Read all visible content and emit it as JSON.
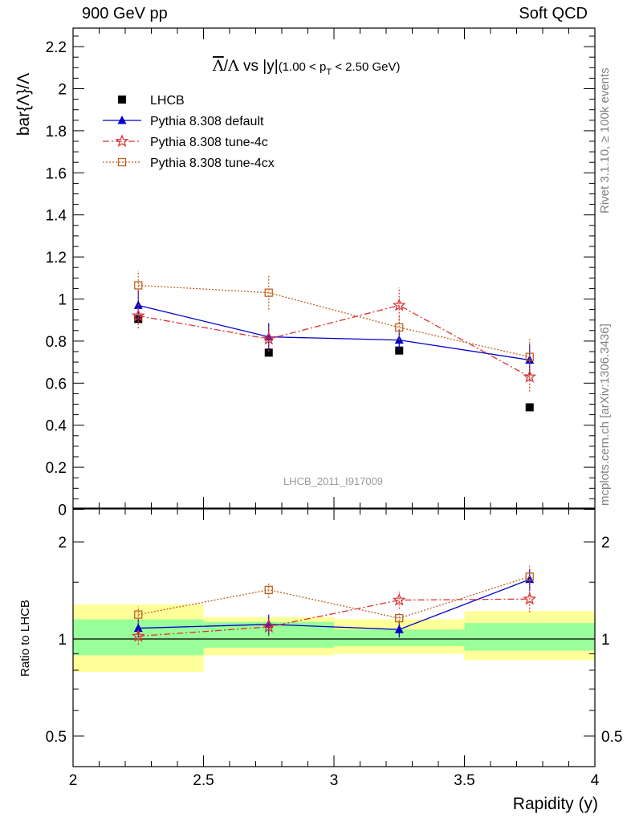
{
  "header": {
    "energy": "900 GeV pp",
    "category": "Soft QCD",
    "rivet": "Rivet 3.1.10, ≥ 100k events",
    "mcplots": "mcplots.cern.ch [arXiv:1306.3436]"
  },
  "chart_data": {
    "type": "scatter",
    "title": "Λ̄/Λ vs |y|(1.00 < p_T < 2.50 GeV)",
    "analysis_label": "LHCB_2011_I917009",
    "xlabel": "Rapidity (y)",
    "ylabel": "bar{Λ}/Λ",
    "ratio_ylabel": "Ratio to LHCB",
    "xlim": [
      2,
      4
    ],
    "ylim": [
      0,
      2.3
    ],
    "ratio_ylim": [
      0.4,
      2.3
    ],
    "x_ticks": [
      "2",
      "2.5",
      "3",
      "3.5",
      "4"
    ],
    "y_ticks": [
      "0",
      "0.2",
      "0.4",
      "0.6",
      "0.8",
      "1",
      "1.2",
      "1.4",
      "1.6",
      "1.8",
      "2",
      "2.2"
    ],
    "ratio_y_ticks": [
      "0.5",
      "1",
      "2"
    ],
    "legend_position": "top-left",
    "bins": [
      [
        2.0,
        2.5
      ],
      [
        2.5,
        3.0
      ],
      [
        3.0,
        3.5
      ],
      [
        3.5,
        4.0
      ]
    ],
    "x": [
      2.25,
      2.75,
      3.25,
      3.75
    ],
    "data": {
      "name": "LHCB",
      "values": [
        0.905,
        0.745,
        0.755,
        0.485
      ],
      "band_inner": [
        [
          0.89,
          1.15
        ],
        [
          0.94,
          1.13
        ],
        [
          0.95,
          1.07
        ],
        [
          0.92,
          1.12
        ]
      ],
      "band_outer": [
        [
          0.79,
          1.28
        ],
        [
          0.89,
          1.17
        ],
        [
          0.9,
          1.15
        ],
        [
          0.86,
          1.22
        ]
      ]
    },
    "series": [
      {
        "name": "Pythia 8.308 default",
        "color": "#0000cc",
        "marker": "triangle",
        "values": [
          0.97,
          0.82,
          0.805,
          0.71
        ],
        "errors": [
          0.07,
          0.065,
          0.05,
          0.075
        ],
        "ratio": [
          1.08,
          1.11,
          1.07,
          1.53
        ],
        "ratio_errors": [
          0.07,
          0.08,
          0.06,
          0.12
        ]
      },
      {
        "name": "Pythia 8.308 tune-4c",
        "color": "#dd3333",
        "marker": "star",
        "values": [
          0.92,
          0.81,
          0.97,
          0.63
        ],
        "errors": [
          0.06,
          0.06,
          0.085,
          0.07
        ],
        "ratio": [
          1.02,
          1.09,
          1.32,
          1.33
        ],
        "ratio_errors": [
          0.06,
          0.07,
          0.08,
          0.12
        ]
      },
      {
        "name": "Pythia 8.308 tune-4cx",
        "color": "#c06020",
        "marker": "square-open",
        "values": [
          1.065,
          1.03,
          0.865,
          0.725
        ],
        "errors": [
          0.07,
          0.08,
          0.06,
          0.09
        ],
        "ratio": [
          1.19,
          1.42,
          1.16,
          1.56
        ],
        "ratio_errors": [
          0.07,
          0.08,
          0.05,
          0.14
        ]
      }
    ]
  }
}
